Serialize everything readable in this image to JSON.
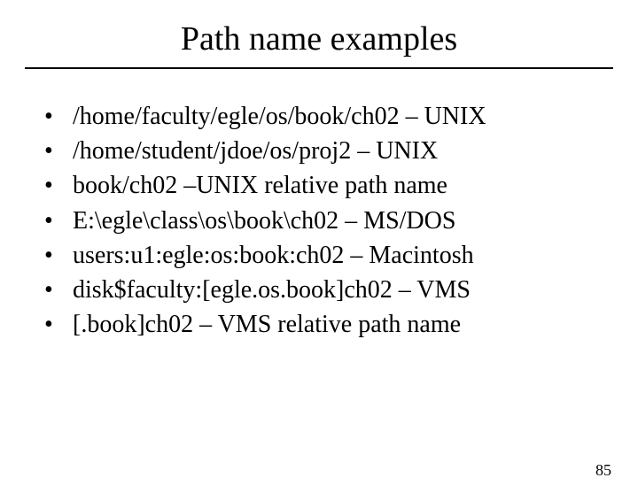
{
  "slide": {
    "title": "Path name examples",
    "bullets": [
      "/home/faculty/egle/os/book/ch02 – UNIX",
      "/home/student/jdoe/os/proj2 – UNIX",
      "book/ch02 –UNIX relative path name",
      "E:\\egle\\class\\os\\book\\ch02 – MS/DOS",
      "users:u1:egle:os:book:ch02 – Macintosh",
      "disk$faculty:[egle.os.book]ch02 – VMS",
      "[.book]ch02 – VMS relative path name"
    ],
    "page_number": "85",
    "title_fontsize": 38,
    "body_fontsize": 28,
    "pagenum_fontsize": 18,
    "background_color": "#ffffff",
    "text_color": "#000000",
    "divider_color": "#000000"
  }
}
